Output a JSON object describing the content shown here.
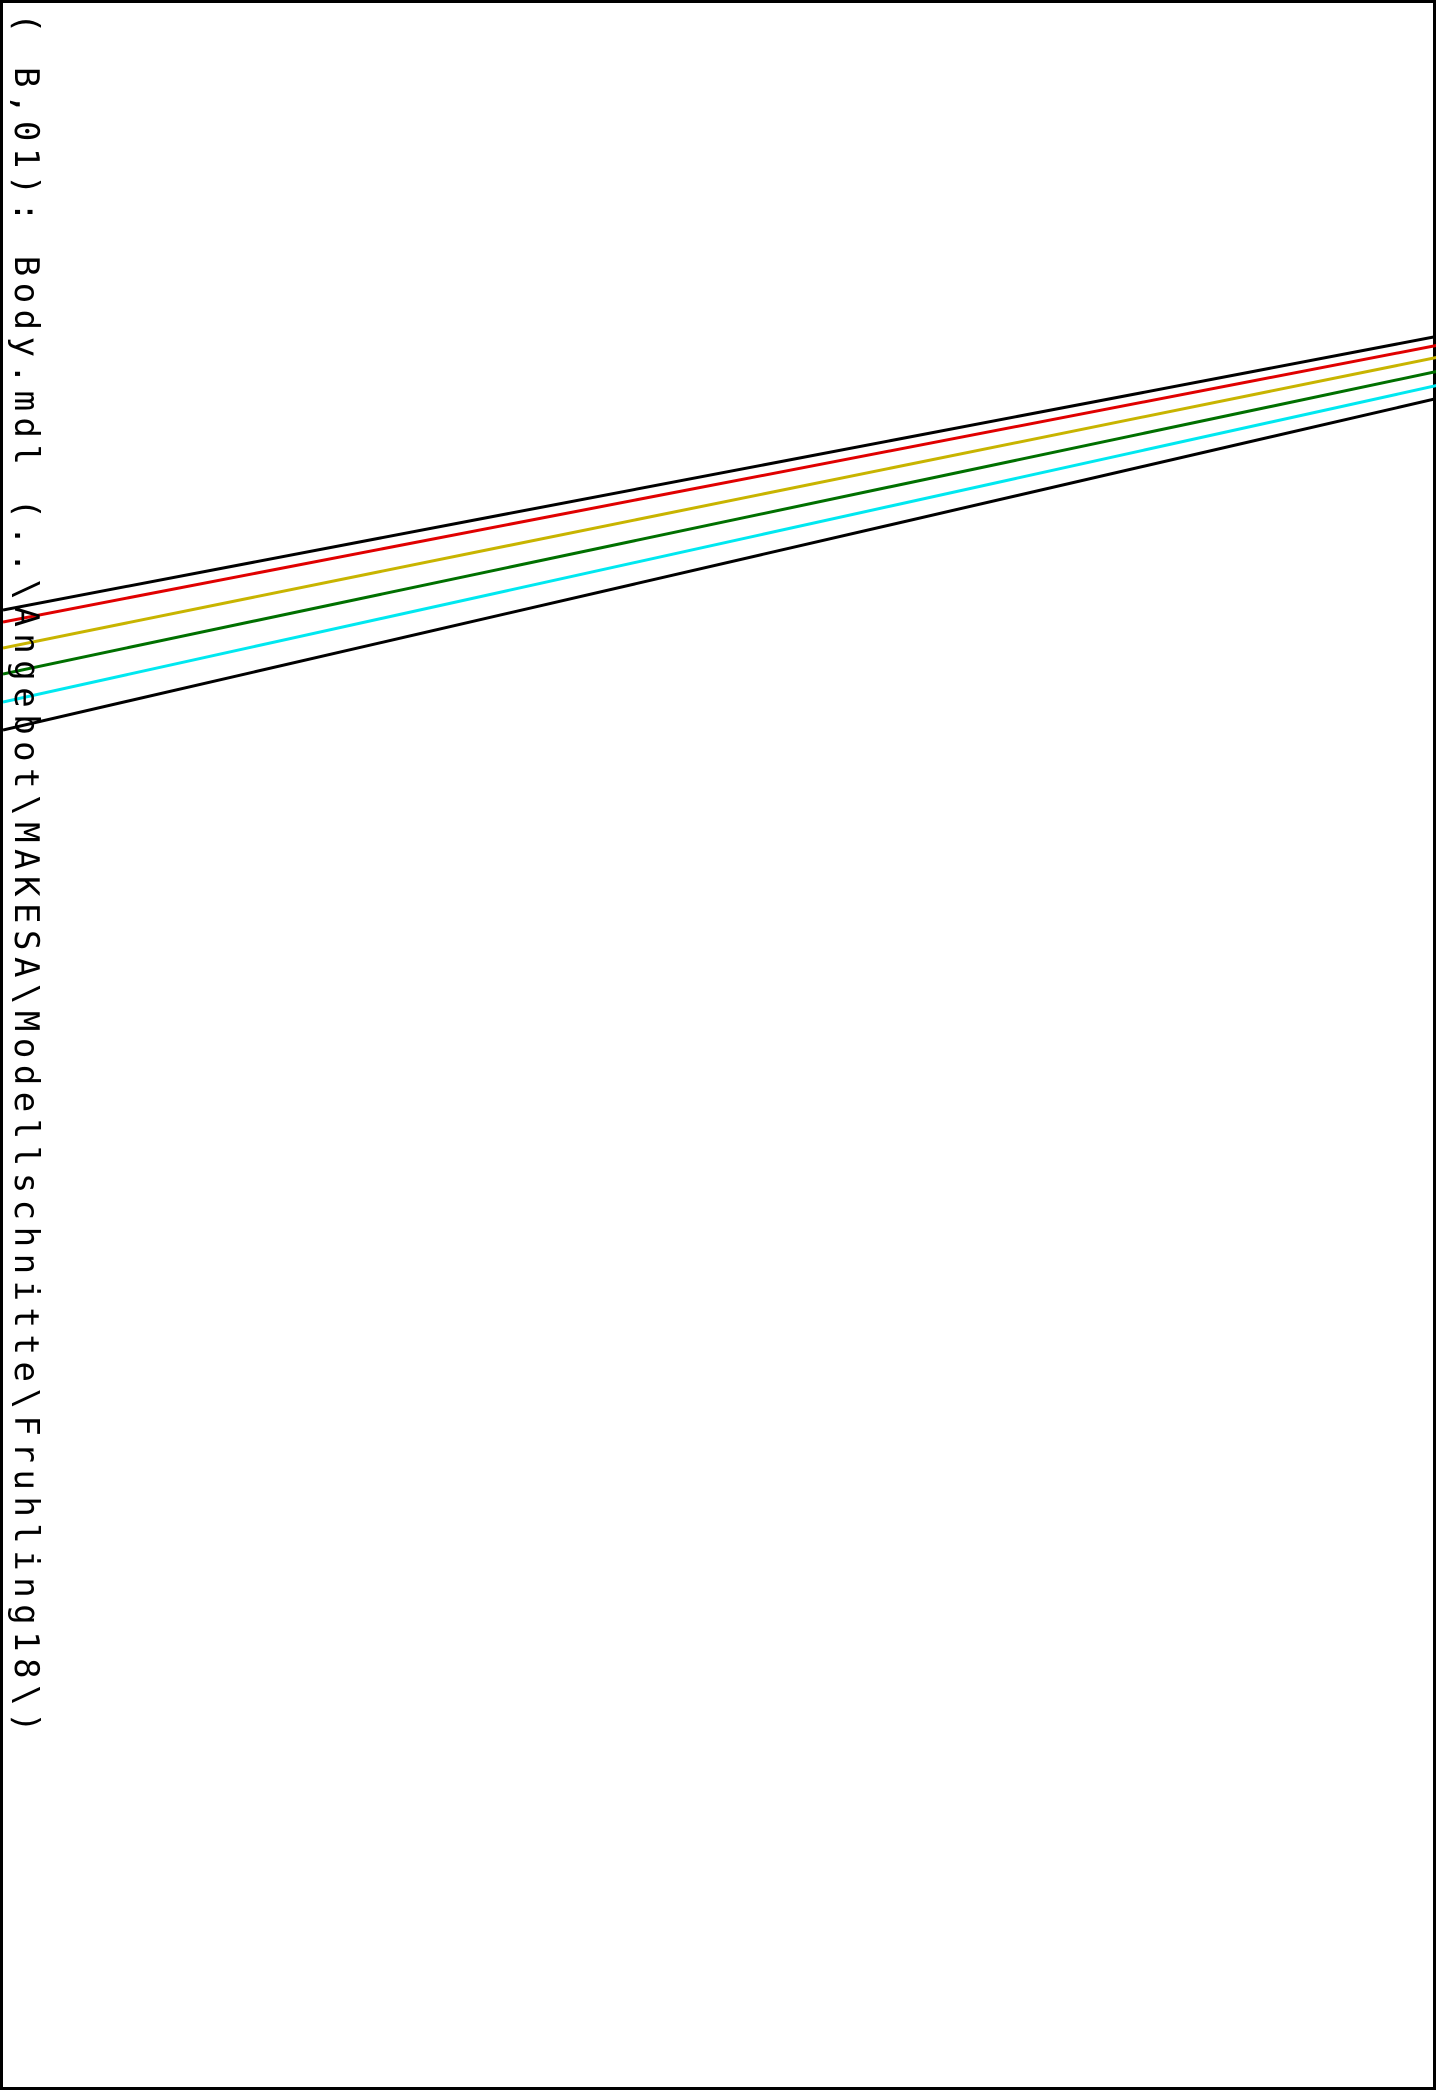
{
  "drawing": {
    "label": "( B,01): Body.mdl (..\\Angebot\\MAKESA\\Modellschnitte\\Fruhling18\\)"
  },
  "lines": [
    {
      "name": "line-black-top",
      "color": "#000000"
    },
    {
      "name": "line-red",
      "color": "#e00000"
    },
    {
      "name": "line-yellow",
      "color": "#c8b400"
    },
    {
      "name": "line-green",
      "color": "#007000"
    },
    {
      "name": "line-cyan",
      "color": "#00e8f0"
    },
    {
      "name": "line-black-bottom",
      "color": "#000000"
    }
  ]
}
